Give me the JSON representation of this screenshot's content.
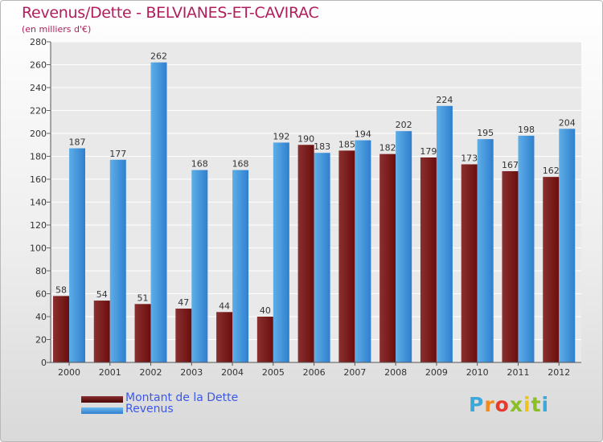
{
  "title": "Revenus/Dette - BELVIANES-ET-CAVIRAC",
  "subtitle": "(en milliers d'€)",
  "legend": {
    "debt_label": "Montant de la Dette",
    "revenue_label": "Revenus"
  },
  "logo": {
    "text": "Proxiti"
  },
  "colors": {
    "debt_bar": "#6b0d0d",
    "debt_bar_light": "#8a3030",
    "revenue_bar": "#2f7fcf",
    "revenue_bar_light": "#5eaee8",
    "title": "#b01e5c",
    "legend_text": "#3c58e8"
  },
  "chart_data": {
    "type": "bar",
    "categories": [
      "2000",
      "2001",
      "2002",
      "2003",
      "2004",
      "2005",
      "2006",
      "2007",
      "2008",
      "2009",
      "2010",
      "2011",
      "2012"
    ],
    "series": [
      {
        "name": "Montant de la Dette",
        "values": [
          58,
          54,
          51,
          47,
          44,
          40,
          190,
          185,
          182,
          179,
          173,
          167,
          162
        ]
      },
      {
        "name": "Revenus",
        "values": [
          187,
          177,
          262,
          168,
          168,
          192,
          183,
          194,
          202,
          224,
          195,
          198,
          204
        ]
      }
    ],
    "ylim": [
      0,
      280
    ],
    "yticks": [
      0,
      20,
      40,
      60,
      80,
      100,
      120,
      140,
      160,
      180,
      200,
      220,
      240,
      260,
      280
    ],
    "grid": true,
    "data_labels": true,
    "legend_position": "bottom-left"
  }
}
